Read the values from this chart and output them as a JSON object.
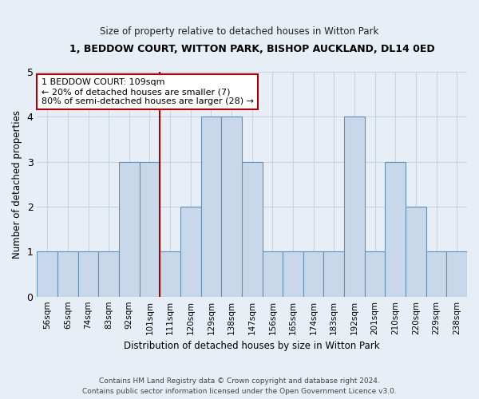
{
  "title": "1, BEDDOW COURT, WITTON PARK, BISHOP AUCKLAND, DL14 0ED",
  "subtitle": "Size of property relative to detached houses in Witton Park",
  "xlabel": "Distribution of detached houses by size in Witton Park",
  "ylabel": "Number of detached properties",
  "footer_line1": "Contains HM Land Registry data © Crown copyright and database right 2024.",
  "footer_line2": "Contains public sector information licensed under the Open Government Licence v3.0.",
  "bin_labels": [
    "56sqm",
    "65sqm",
    "74sqm",
    "83sqm",
    "92sqm",
    "101sqm",
    "111sqm",
    "120sqm",
    "129sqm",
    "138sqm",
    "147sqm",
    "156sqm",
    "165sqm",
    "174sqm",
    "183sqm",
    "192sqm",
    "201sqm",
    "210sqm",
    "220sqm",
    "229sqm",
    "238sqm"
  ],
  "bar_values": [
    1,
    1,
    1,
    1,
    3,
    3,
    1,
    2,
    4,
    4,
    3,
    1,
    1,
    1,
    1,
    4,
    1,
    3,
    2,
    1,
    1
  ],
  "bar_color": "#c8d8ea",
  "bar_edge_color": "#6090b8",
  "vline_index": 6,
  "vline_color": "#aa0000",
  "annotation_text": "1 BEDDOW COURT: 109sqm\n← 20% of detached houses are smaller (7)\n80% of semi-detached houses are larger (28) →",
  "annotation_box_color": "white",
  "annotation_box_edge": "#aa0000",
  "ylim": [
    0,
    5
  ],
  "yticks": [
    0,
    1,
    2,
    3,
    4,
    5
  ],
  "grid_color": "#c8d4e4",
  "background_color": "#e8eef6",
  "ax_background": "#e8eef6"
}
